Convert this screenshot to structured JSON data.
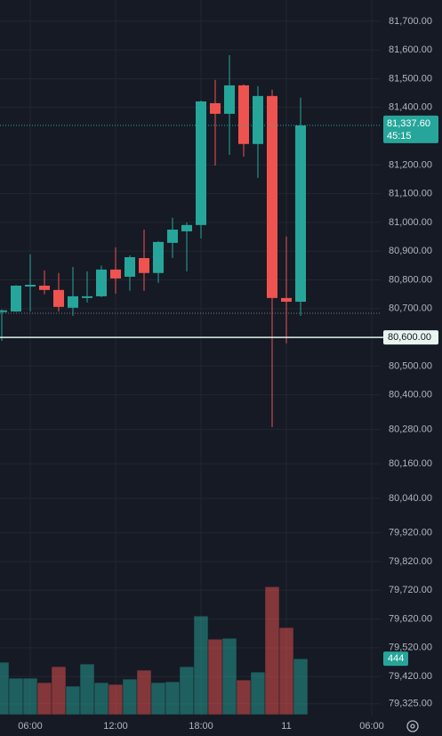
{
  "chart_data": {
    "type": "candlestick",
    "x": [
      0,
      1,
      2,
      3,
      4,
      5,
      6,
      7,
      8,
      9,
      10,
      11,
      12,
      13,
      14,
      15,
      16,
      17,
      18,
      19,
      20,
      21
    ],
    "open": [
      80688,
      80690,
      80777,
      80780,
      80765,
      80703,
      80737,
      80743,
      80836,
      80811,
      80876,
      80824,
      80929,
      80969,
      80991,
      81415,
      81378,
      81477,
      81273,
      81440,
      80737,
      80724
    ],
    "high": [
      80697,
      80782,
      80889,
      80833,
      80824,
      80845,
      80830,
      80850,
      80913,
      80885,
      80975,
      80935,
      81016,
      81000,
      81424,
      81496,
      81582,
      81480,
      81474,
      81462,
      80951,
      81434
    ],
    "low": [
      80588,
      80688,
      80690,
      80750,
      80690,
      80675,
      80721,
      80740,
      80752,
      80762,
      80762,
      80790,
      80876,
      80830,
      80944,
      81198,
      81235,
      81229,
      81155,
      80288,
      80579,
      80675
    ],
    "close": [
      80694,
      80780,
      80783,
      80765,
      80706,
      80743,
      80743,
      80836,
      80805,
      80879,
      80824,
      80932,
      80975,
      80991,
      81421,
      81378,
      81477,
      81273,
      81440,
      80737,
      80724,
      81337.6
    ],
    "volume": [
      416,
      289,
      289,
      254,
      381,
      226,
      402,
      254,
      240,
      282,
      353,
      254,
      261,
      381,
      783,
      599,
      606,
      275,
      338,
      1015,
      691,
      444
    ],
    "up_color": "#26a69a",
    "down_color": "#ef5350",
    "ylim": [
      79281,
      81774
    ],
    "yticks": [
      {
        "value": 81700,
        "label": "81,700.00"
      },
      {
        "value": 81600,
        "label": "81,600.00"
      },
      {
        "value": 81500,
        "label": "81,500.00"
      },
      {
        "value": 81400,
        "label": "81,400.00"
      },
      {
        "value": 81200,
        "label": "81,200.00"
      },
      {
        "value": 81100,
        "label": "81,100.00"
      },
      {
        "value": 81000,
        "label": "81,000.00"
      },
      {
        "value": 80900,
        "label": "80,900.00"
      },
      {
        "value": 80800,
        "label": "80,800.00"
      },
      {
        "value": 80700,
        "label": "80,700.00"
      },
      {
        "value": 80500,
        "label": "80,500.00"
      },
      {
        "value": 80400,
        "label": "80,400.00"
      },
      {
        "value": 80280,
        "label": "80,280.00"
      },
      {
        "value": 80160,
        "label": "80,160.00"
      },
      {
        "value": 80040,
        "label": "80,040.00"
      },
      {
        "value": 79920,
        "label": "79,920.00"
      },
      {
        "value": 79820,
        "label": "79,820.00"
      },
      {
        "value": 79720,
        "label": "79,720.00"
      },
      {
        "value": 79620,
        "label": "79,620.00"
      },
      {
        "value": 79520,
        "label": "79,520.00"
      },
      {
        "value": 79420,
        "label": "79,420.00"
      },
      {
        "value": 79325,
        "label": "79,325.00"
      }
    ],
    "xlim": [
      -0.125,
      26.625
    ],
    "xticks": [
      {
        "value": 2,
        "label": "06:00"
      },
      {
        "value": 8,
        "label": "12:00"
      },
      {
        "value": 14,
        "label": "18:00"
      },
      {
        "value": 20,
        "label": "11"
      },
      {
        "value": 26,
        "label": "06:00"
      }
    ],
    "vlim": [
      0,
      1300
    ],
    "last_price": {
      "value": 81337.6,
      "label": "81,337.60"
    },
    "countdown": "45:15",
    "alert_line": {
      "value": 80600,
      "label": "80,600.00"
    },
    "dotted_line": 80684,
    "grid": true
  }
}
